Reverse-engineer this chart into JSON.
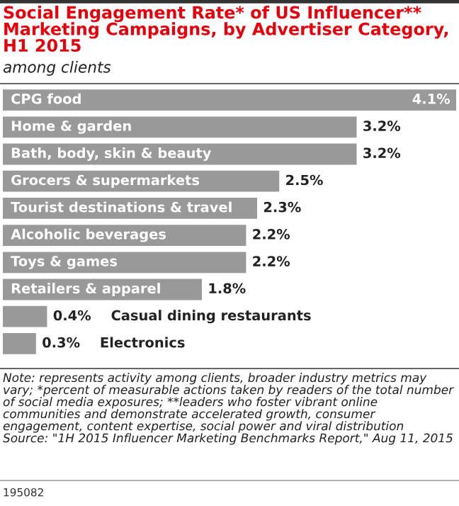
{
  "chart_data": {
    "type": "bar",
    "orientation": "horizontal",
    "title": "Social Engagement Rate* of US Influencer** Marketing Campaigns, by Advertiser Category, H1 2015",
    "subtitle": "among clients",
    "categories": [
      "CPG food",
      "Home & garden",
      "Bath, body, skin & beauty",
      "Grocers & supermarkets",
      "Tourist destinations & travel",
      "Alcoholic beverages",
      "Toys & games",
      "Retailers & apparel",
      "Casual dining restaurants",
      "Electronics"
    ],
    "values": [
      4.1,
      3.2,
      3.2,
      2.5,
      2.3,
      2.2,
      2.2,
      1.8,
      0.4,
      0.3
    ],
    "value_labels": [
      "4.1%",
      "3.2%",
      "3.2%",
      "2.5%",
      "2.3%",
      "2.2%",
      "2.2%",
      "1.8%",
      "0.4%",
      "0.3%"
    ],
    "color": "#999999",
    "annotations": [
      "Note: represents activity among clients, broader industry metrics may vary; *percent of measurable actions taken by readers of the total number of social media exposures; **leaders who foster vibrant online communities and demonstrate accelerated growth, consumer engagement, content expertise, social power and viral distribution\nSource: \"1H 2015 Influencer Marketing Benchmarks Report,\" Aug 11, 2015",
      "195082"
    ],
    "legend": false
  }
}
